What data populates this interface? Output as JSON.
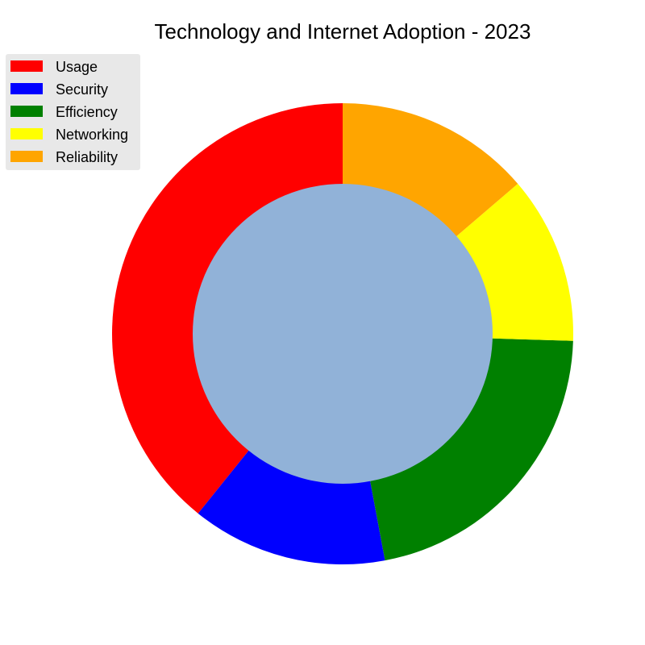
{
  "chart_data": {
    "type": "pie",
    "variant": "donut",
    "title": "Technology and Internet Adoption - 2023",
    "categories": [
      "Usage",
      "Security",
      "Efficiency",
      "Networking",
      "Reliability"
    ],
    "values": [
      40,
      14,
      22,
      12,
      14
    ],
    "colors": [
      "#ff0000",
      "#0000ff",
      "#008000",
      "#ffff00",
      "#ffa500"
    ],
    "center_color": "#91b2d8",
    "start_angle_deg": 90,
    "direction": "counterclockwise",
    "legend": {
      "position": "top-left",
      "frame_color": "#e8e8e8"
    }
  }
}
